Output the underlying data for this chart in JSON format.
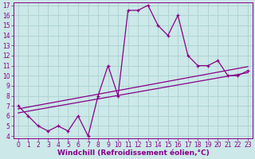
{
  "xlabel": "Windchill (Refroidissement éolien,°C)",
  "ylabel": "",
  "xlim": [
    -0.5,
    23.5
  ],
  "ylim": [
    3.8,
    17.3
  ],
  "xticks": [
    0,
    1,
    2,
    3,
    4,
    5,
    6,
    7,
    8,
    9,
    10,
    11,
    12,
    13,
    14,
    15,
    16,
    17,
    18,
    19,
    20,
    21,
    22,
    23
  ],
  "yticks": [
    4,
    5,
    6,
    7,
    8,
    9,
    10,
    11,
    12,
    13,
    14,
    15,
    16,
    17
  ],
  "bg_color": "#cce8e8",
  "line_color": "#880088",
  "grid_color": "#b0d4d4",
  "main_x": [
    0,
    1,
    2,
    3,
    4,
    5,
    6,
    7,
    8,
    9,
    10,
    11,
    12,
    13,
    14,
    15,
    16,
    17,
    18,
    19,
    20,
    21,
    22,
    23
  ],
  "main_y": [
    7.0,
    6.0,
    5.0,
    4.5,
    5.0,
    4.5,
    6.0,
    4.0,
    8.0,
    11.0,
    8.0,
    16.5,
    16.5,
    17.0,
    15.0,
    14.0,
    16.0,
    12.0,
    11.0,
    11.0,
    11.5,
    10.0,
    10.0,
    10.5
  ],
  "trend1_x": [
    0,
    23
  ],
  "trend1_y": [
    6.3,
    10.3
  ],
  "trend2_x": [
    0,
    23
  ],
  "trend2_y": [
    6.7,
    10.9
  ],
  "tick_fontsize": 5.5,
  "label_fontsize": 6.5
}
